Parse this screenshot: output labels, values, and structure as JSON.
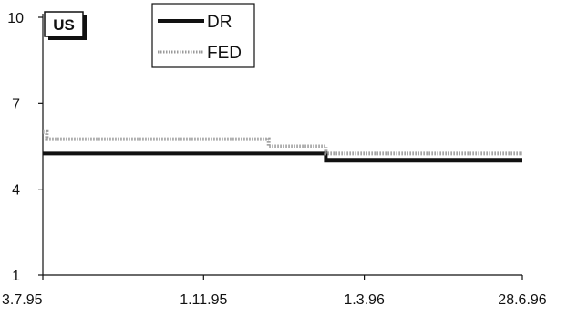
{
  "chart_data": {
    "type": "line",
    "panel_label": "US",
    "ylim": [
      1,
      10
    ],
    "yticks": [
      1,
      4,
      7,
      10
    ],
    "x_tick_labels": [
      "3.7.95",
      "1.11.95",
      "1.3.96",
      "28.6.96"
    ],
    "x_tick_dates": [
      "1995-07-03",
      "1995-11-01",
      "1996-03-01",
      "1996-06-28"
    ],
    "grid": false,
    "legend_position": "top-center",
    "series": [
      {
        "name": "DR",
        "color": "#111111",
        "style": "solid-thick",
        "points": [
          {
            "date": "1995-07-03",
            "value": 5.25
          },
          {
            "date": "1996-02-01",
            "value": 5.25
          },
          {
            "date": "1996-02-01",
            "value": 5.0
          },
          {
            "date": "1996-06-28",
            "value": 5.0
          }
        ]
      },
      {
        "name": "FED",
        "color": "#9a9a9a",
        "style": "dotted",
        "points": [
          {
            "date": "1995-07-03",
            "value": 6.0
          },
          {
            "date": "1995-07-06",
            "value": 6.0
          },
          {
            "date": "1995-07-06",
            "value": 5.75
          },
          {
            "date": "1995-12-20",
            "value": 5.75
          },
          {
            "date": "1995-12-20",
            "value": 5.5
          },
          {
            "date": "1996-02-01",
            "value": 5.5
          },
          {
            "date": "1996-02-01",
            "value": 5.25
          },
          {
            "date": "1996-06-28",
            "value": 5.25
          }
        ]
      }
    ]
  }
}
